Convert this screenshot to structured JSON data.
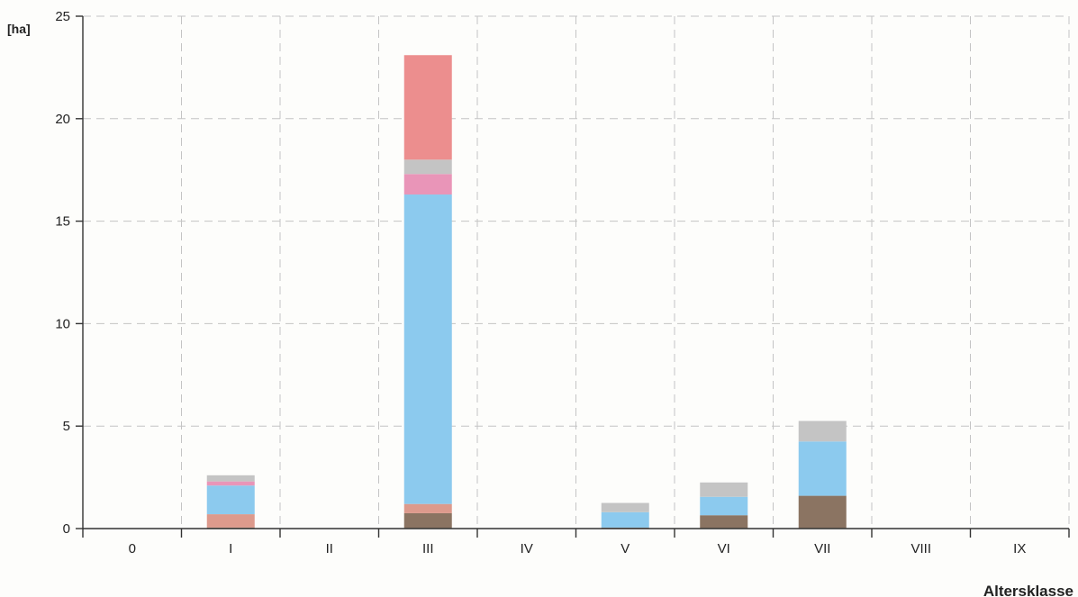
{
  "chart_data": {
    "type": "bar",
    "stacked": true,
    "ylabel": "[ha]",
    "xlabel": "Altersklasse",
    "ylim": [
      0,
      25
    ],
    "yticks": [
      "0",
      "5",
      "10",
      "15",
      "20",
      "25"
    ],
    "categories": [
      "0",
      "I",
      "II",
      "III",
      "IV",
      "V",
      "VI",
      "VII",
      "VIII",
      "IX"
    ],
    "grid": true,
    "series": [
      {
        "color": "#8b7462",
        "values": [
          0,
          0.05,
          0,
          0.75,
          0,
          0.05,
          0.65,
          1.6,
          0,
          0
        ]
      },
      {
        "color": "#dd9a8c",
        "values": [
          0,
          0.65,
          0,
          0.45,
          0,
          0,
          0,
          0,
          0,
          0
        ]
      },
      {
        "color": "#8ccaee",
        "values": [
          0,
          1.4,
          0,
          15.1,
          0,
          0.75,
          0.9,
          2.65,
          0,
          0
        ]
      },
      {
        "color": "#e995b8",
        "values": [
          0,
          0.2,
          0,
          1.0,
          0,
          0,
          0,
          0,
          0,
          0
        ]
      },
      {
        "color": "#c4c4c4",
        "values": [
          0,
          0.3,
          0,
          0.7,
          0,
          0.45,
          0.7,
          1.0,
          0,
          0
        ]
      },
      {
        "color": "#ec8e8e",
        "values": [
          0,
          0,
          0,
          5.1,
          0,
          0,
          0,
          0,
          0,
          0
        ]
      }
    ]
  }
}
